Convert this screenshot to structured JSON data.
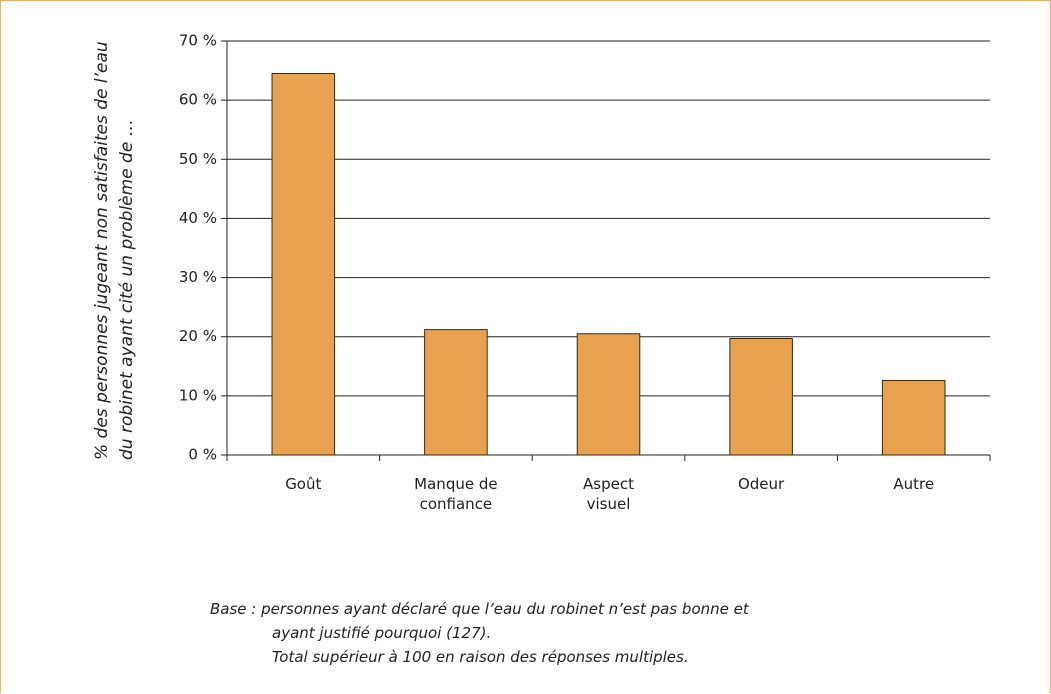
{
  "chart_data": {
    "type": "bar",
    "y_label": "% des personnes jugeant non satisfaites de l’eau du robinet ayant cité un problème de …",
    "categories": [
      "Goût",
      "Manque de confiance",
      "Aspect visuel",
      "Odeur",
      "Autre"
    ],
    "values": [
      64.5,
      21.2,
      20.5,
      19.7,
      12.6
    ],
    "color": "#e8a24f",
    "ylim": [
      0,
      70
    ],
    "yticks": [
      {
        "value": 0,
        "label": "0 %"
      },
      {
        "value": 10,
        "label": "10 %"
      },
      {
        "value": 20,
        "label": "20 %"
      },
      {
        "value": 30,
        "label": "30 %"
      },
      {
        "value": 40,
        "label": "40 %"
      },
      {
        "value": 50,
        "label": "50 %"
      },
      {
        "value": 60,
        "label": "60 %"
      },
      {
        "value": 70,
        "label": "70 %"
      }
    ],
    "grid": true,
    "notes": [
      "Base : personnes ayant déclaré que l’eau du robinet n’est pas bonne et",
      "ayant justifié pourquoi (127).",
      "Total supérieur à 100 en raison des réponses multiples."
    ]
  }
}
